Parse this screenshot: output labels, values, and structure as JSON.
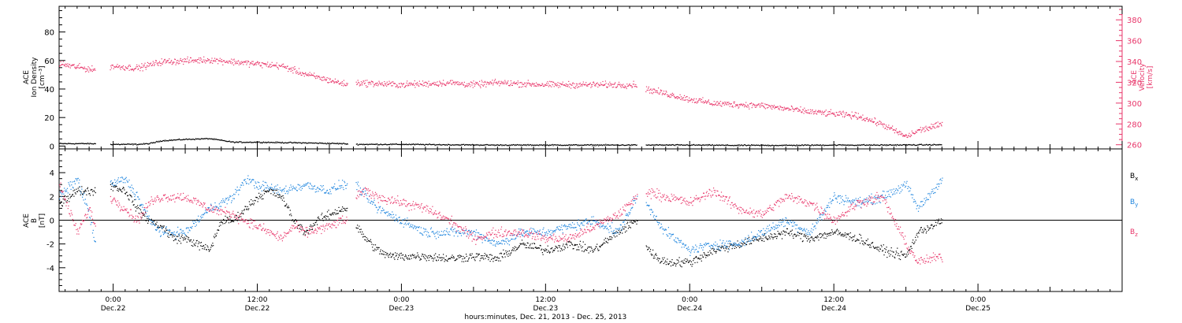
{
  "colors": {
    "black": "#000000",
    "pink": "#e8366a",
    "blue": "#1f85de"
  },
  "chart_data": [
    {
      "type": "scatter",
      "panel": "top",
      "ylabel_left": [
        "ACE",
        "Ion Density",
        "[cm⁻³]"
      ],
      "ylabel_right": [
        "ACE",
        "Velocity",
        "[km/s]"
      ],
      "ylim_left": [
        -2,
        98
      ],
      "ylim_right": [
        256,
        393
      ],
      "yticks_left": [
        "0",
        "20",
        "40",
        "60",
        "80"
      ],
      "yticks_right": [
        "260",
        "280",
        "300",
        "320",
        "340",
        "360",
        "380"
      ],
      "x_hours": [
        -4.5,
        84
      ],
      "gaps_hours": [
        [
          -1.5,
          -0.3
        ],
        [
          19.5,
          20.2
        ],
        [
          43.6,
          44.3
        ]
      ],
      "data_end_hour": 69,
      "series": [
        {
          "color": "black",
          "axis": "left",
          "x": [
            -4.5,
            -2,
            0,
            2,
            3,
            4,
            6,
            8,
            10,
            12,
            16,
            19,
            20.2,
            24,
            28,
            32,
            36,
            40,
            43.5,
            44.3,
            48,
            52,
            56,
            60,
            64,
            69
          ],
          "y": [
            2,
            2,
            1.5,
            1.5,
            2,
            4,
            5,
            5.5,
            3,
            3,
            2.5,
            2,
            1.5,
            1.5,
            1.2,
            1,
            1,
            1,
            1,
            1,
            1,
            0.8,
            0.8,
            1,
            1,
            1.2
          ]
        },
        {
          "color": "pink",
          "axis": "right",
          "x": [
            -4.5,
            -2.5,
            -1.5,
            -0.3,
            2,
            4,
            8,
            10,
            14,
            16,
            19.5,
            20.2,
            24,
            28,
            30,
            32,
            36,
            40,
            43.6,
            44.3,
            48,
            50,
            54,
            58,
            62,
            64,
            66,
            67,
            69
          ],
          "y": [
            338,
            334,
            332,
            336,
            334,
            340,
            342,
            340,
            336,
            328,
            318,
            320,
            318,
            320,
            318,
            320,
            318,
            318,
            318,
            314,
            304,
            300,
            298,
            292,
            288,
            280,
            268,
            274,
            280
          ]
        }
      ]
    },
    {
      "type": "scatter",
      "panel": "bottom",
      "ylabel_left": [
        "ACE",
        "B",
        "[nT]"
      ],
      "ylim": [
        -6,
        6
      ],
      "yticks": [
        "-4",
        "-2",
        "0",
        "2",
        "4"
      ],
      "legend_position": "right",
      "legend": [
        {
          "label": "B",
          "sub": "x",
          "color": "black"
        },
        {
          "label": "B",
          "sub": "y",
          "color": "blue"
        },
        {
          "label": "B",
          "sub": "z",
          "color": "pink"
        }
      ],
      "x_ticks": [
        {
          "hour": 0,
          "label": "0:00",
          "date": "Dec.22"
        },
        {
          "hour": 12,
          "label": "12:00",
          "date": "Dec.22"
        },
        {
          "hour": 24,
          "label": "0:00",
          "date": "Dec.23"
        },
        {
          "hour": 36,
          "label": "12:00",
          "date": "Dec.23"
        },
        {
          "hour": 48,
          "label": "0:00",
          "date": "Dec.24"
        },
        {
          "hour": 60,
          "label": "12:00",
          "date": "Dec.24"
        },
        {
          "hour": 72,
          "label": "0:00",
          "date": "Dec.25"
        }
      ],
      "xlabel": "hours:minutes, Dec. 21, 2013 - Dec. 25, 2013",
      "series": [
        {
          "color": "black",
          "x": [
            -4.5,
            -3,
            -1.5,
            -0.3,
            1,
            2,
            3,
            4,
            5,
            6,
            7,
            8,
            9,
            10,
            11,
            12,
            13,
            14,
            15,
            16,
            17,
            18,
            19,
            19.5,
            20.2,
            21,
            22,
            23,
            24,
            26,
            28,
            30,
            32,
            34,
            36,
            38,
            40,
            42,
            43.6,
            44.3,
            45,
            46,
            48,
            50,
            52,
            54,
            56,
            58,
            60,
            62,
            64,
            66,
            67,
            69
          ],
          "y": [
            1.5,
            2.5,
            2.5,
            3,
            2.5,
            1,
            0,
            -0.5,
            -1.5,
            -1.5,
            -2,
            -2.5,
            0,
            0,
            1,
            2,
            2.5,
            2,
            0,
            -1,
            0,
            0.5,
            1,
            1,
            -0.5,
            -1.5,
            -2.5,
            -3,
            -3,
            -3,
            -3.2,
            -3,
            -3.2,
            -2,
            -2.5,
            -2,
            -2.5,
            -1,
            0,
            -2,
            -3,
            -3.5,
            -3.5,
            -2.5,
            -2,
            -1.5,
            -1,
            -1.5,
            -1,
            -1.5,
            -2.5,
            -3,
            -1,
            0
          ]
        },
        {
          "color": "blue",
          "x": [
            -4.5,
            -3,
            -2,
            -1.5,
            -0.3,
            1,
            2,
            3,
            4,
            6,
            8,
            10,
            11,
            12,
            14,
            16,
            18,
            19,
            19.5,
            20.2,
            21,
            22,
            24,
            26,
            28,
            30,
            32,
            34,
            36,
            38,
            40,
            42,
            43.6,
            44.3,
            46,
            48,
            50,
            52,
            54,
            56,
            58,
            60,
            62,
            64,
            66,
            67,
            69
          ],
          "y": [
            2,
            3.5,
            0.5,
            -2,
            3,
            3.5,
            2,
            0,
            -1,
            -1,
            1,
            2,
            3.5,
            3,
            2.5,
            3,
            2.5,
            3,
            3,
            3,
            2,
            1,
            0,
            -1,
            -1,
            -1,
            -2,
            -1,
            -1,
            -0.5,
            0,
            -1,
            2,
            1.5,
            -1,
            -2.5,
            -2,
            -2,
            -1,
            0,
            -1,
            2,
            1.5,
            2,
            3,
            1,
            3.5
          ]
        },
        {
          "color": "pink",
          "x": [
            -4.5,
            -3,
            -2,
            -1.5,
            -0.3,
            1,
            2,
            3,
            4,
            6,
            8,
            10,
            12,
            13,
            14,
            15,
            16,
            18,
            19,
            19.5,
            20.2,
            21,
            22,
            24,
            26,
            28,
            30,
            32,
            34,
            36,
            38,
            40,
            42,
            43.6,
            44.3,
            46,
            48,
            50,
            52,
            54,
            56,
            58,
            60,
            62,
            64,
            66,
            67,
            69
          ],
          "y": [
            3,
            -1,
            1,
            -0.5,
            2,
            1,
            0,
            1.5,
            2,
            2,
            1,
            0.5,
            -0.5,
            -1,
            -1.5,
            -0.5,
            -1,
            -0.5,
            0,
            0,
            2,
            2.5,
            2,
            1.5,
            1,
            0,
            -1.5,
            -1,
            -1,
            -1.5,
            -1.5,
            -0.5,
            0.5,
            2,
            2.5,
            2,
            1.5,
            2.5,
            1,
            0.5,
            2,
            1.5,
            0,
            1.5,
            2,
            -2,
            -3.5,
            -3
          ]
        }
      ]
    }
  ]
}
